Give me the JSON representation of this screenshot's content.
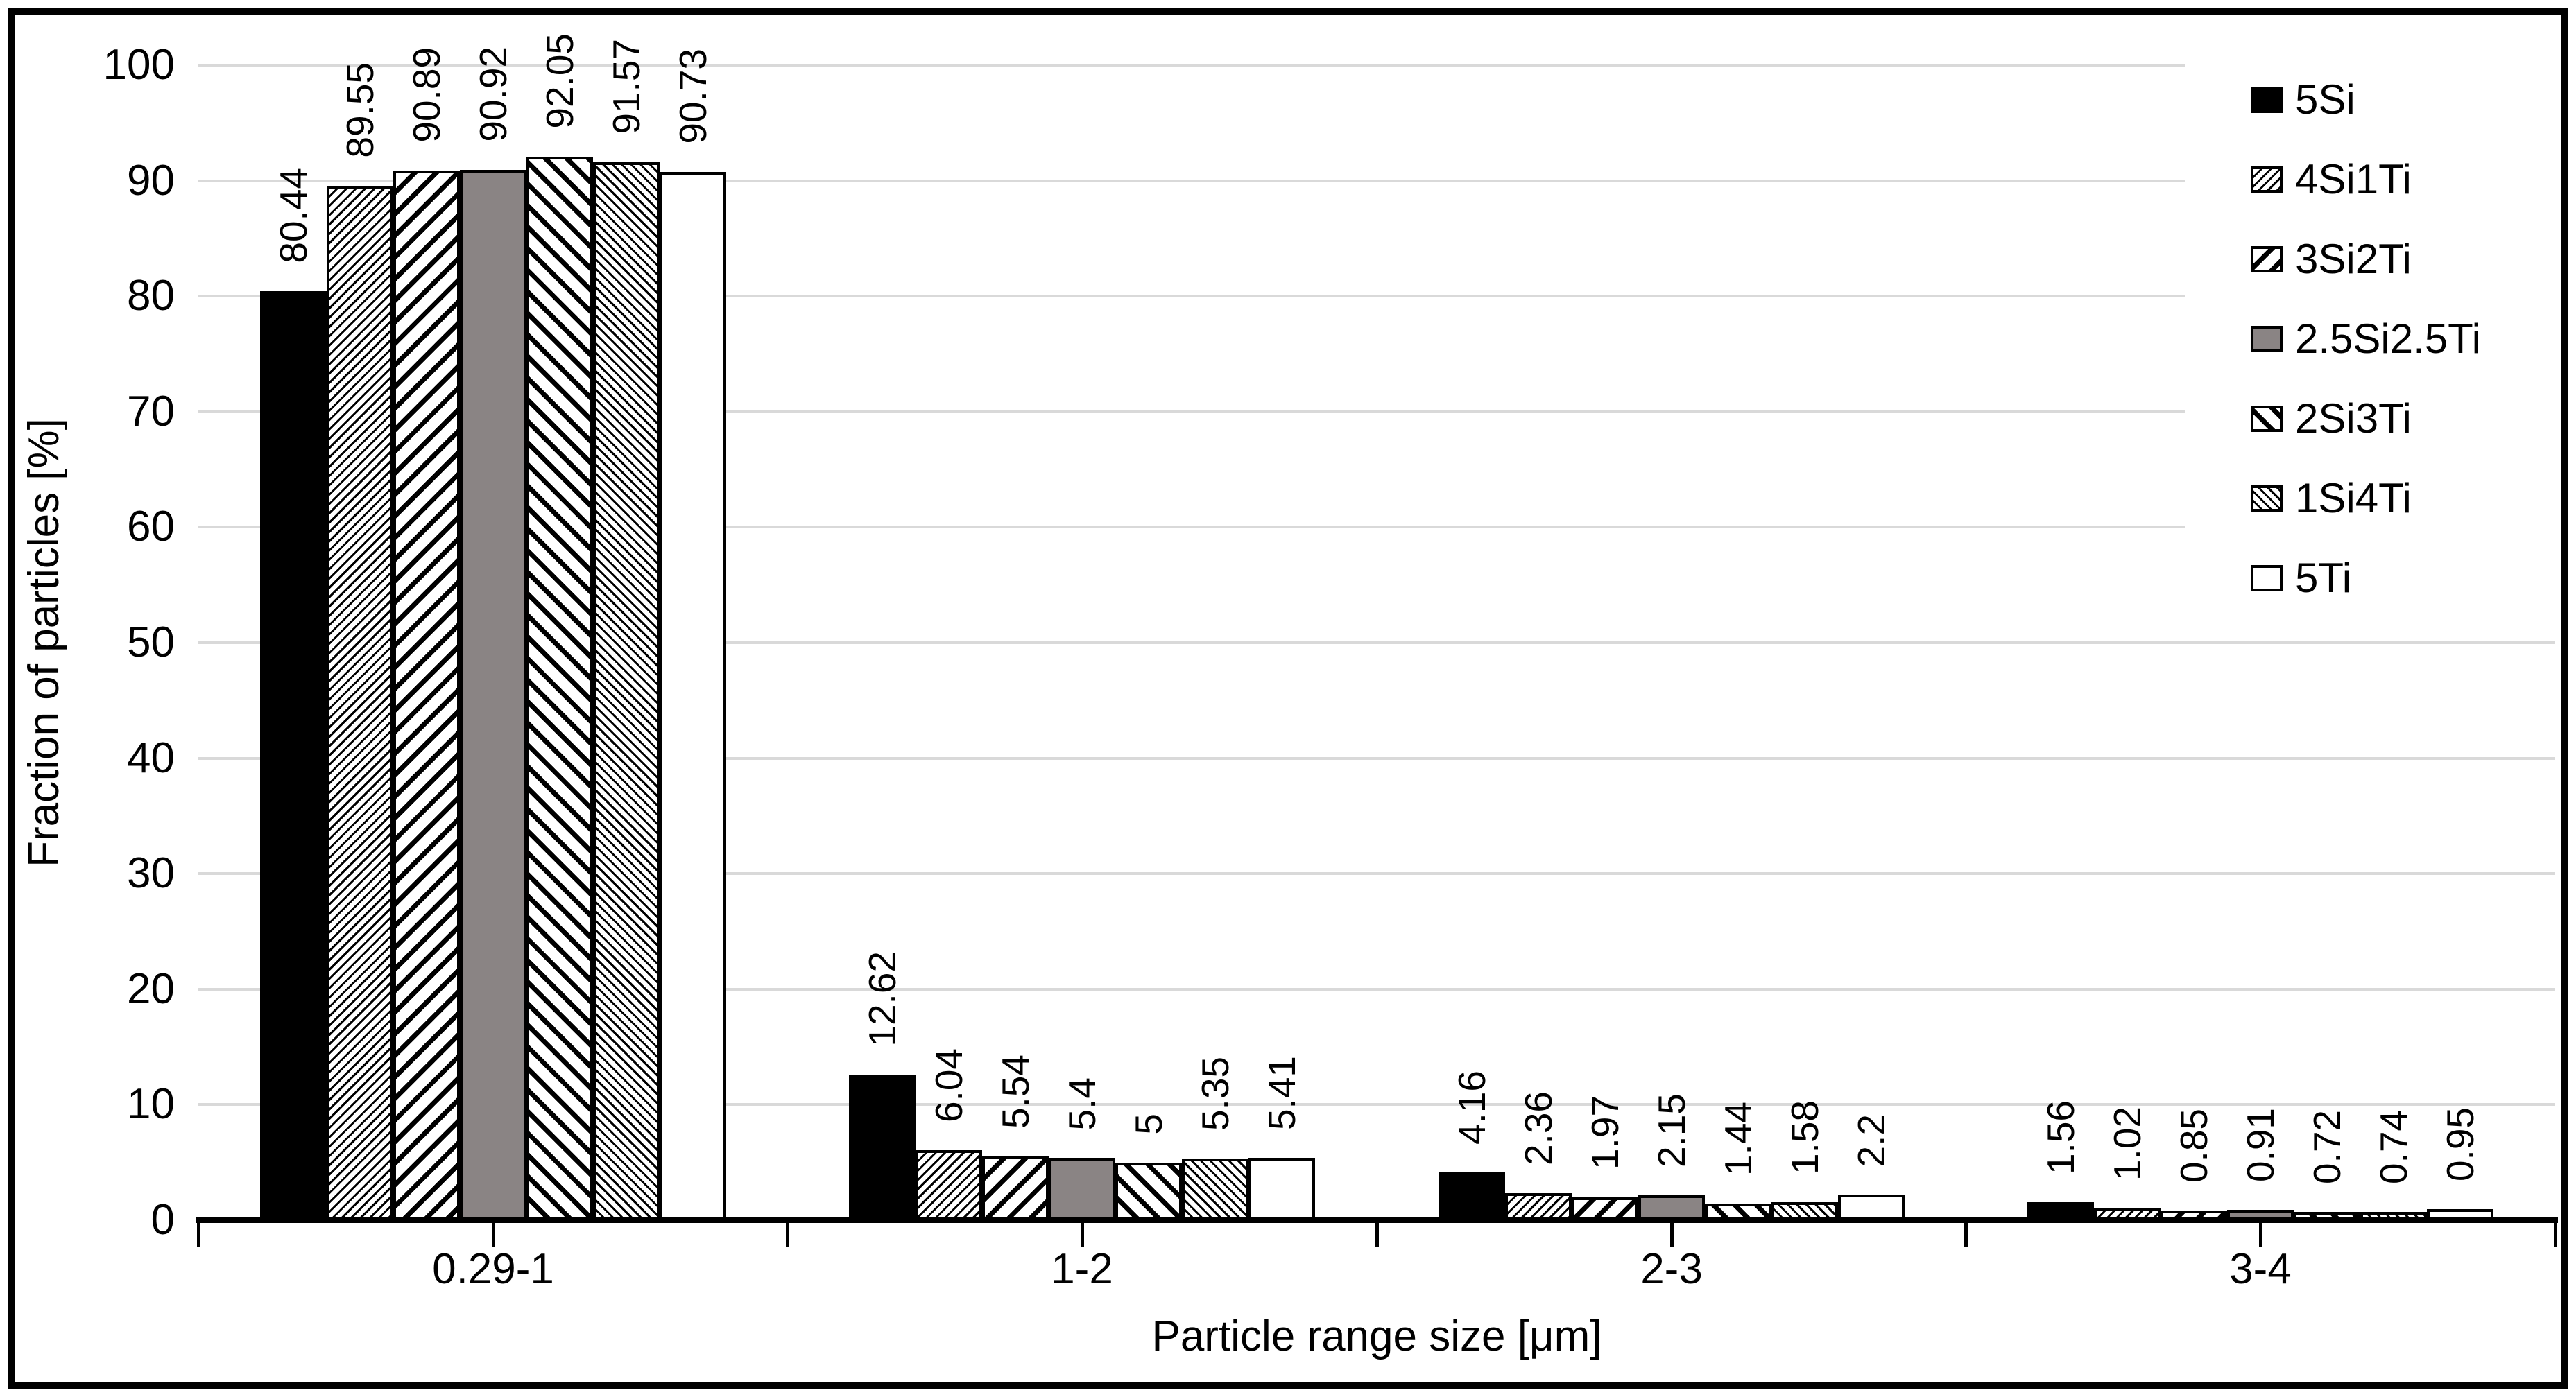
{
  "chart_data": {
    "type": "bar",
    "title": "",
    "xlabel": "Particle range size [μm]",
    "ylabel": "Fraction of particles [%]",
    "ylim": [
      0,
      100
    ],
    "yticks": [
      0,
      10,
      20,
      30,
      40,
      50,
      60,
      70,
      80,
      90,
      100
    ],
    "ytick_labels": [
      "0",
      "10",
      "20",
      "30",
      "40",
      "50",
      "60",
      "70",
      "80",
      "90",
      "100"
    ],
    "grid": "horizontal major gridlines, light gray, solid",
    "legend_position": "upper-right inside plot, white background",
    "categories": [
      "0.29-1",
      "1-2",
      "2-3",
      "3-4"
    ],
    "series": [
      {
        "name": "5Si",
        "pattern": "solid-black",
        "color": "#000000",
        "values": [
          80.44,
          12.62,
          4.16,
          1.56
        ],
        "labels": [
          "80.44",
          "12.62",
          "4.16",
          "1.56"
        ]
      },
      {
        "name": "4Si1Ti",
        "pattern": "fine-forward-hatch",
        "color": "#000000 on #ffffff",
        "values": [
          89.55,
          6.04,
          2.36,
          1.02
        ],
        "labels": [
          "89.55",
          "6.04",
          "2.36",
          "1.02"
        ]
      },
      {
        "name": "3Si2Ti",
        "pattern": "wide-forward-hatch",
        "color": "#000000 on #ffffff",
        "values": [
          90.89,
          5.54,
          1.97,
          0.85
        ],
        "labels": [
          "90.89",
          "5.54",
          "1.97",
          "0.85"
        ]
      },
      {
        "name": "2.5Si2.5Ti",
        "pattern": "solid-gray",
        "color": "#8a8484",
        "values": [
          90.92,
          5.4,
          2.15,
          0.91
        ],
        "labels": [
          "90.92",
          "5.4",
          "2.15",
          "0.91"
        ]
      },
      {
        "name": "2Si3Ti",
        "pattern": "wide-back-hatch",
        "color": "#000000 on #ffffff",
        "values": [
          92.05,
          5,
          1.44,
          0.72
        ],
        "labels": [
          "92.05",
          "5",
          "1.44",
          "0.72"
        ]
      },
      {
        "name": "1Si4Ti",
        "pattern": "fine-back-hatch",
        "color": "#000000 on #ffffff",
        "values": [
          91.57,
          5.35,
          1.58,
          0.74
        ],
        "labels": [
          "91.57",
          "5.35",
          "1.58",
          "0.74"
        ]
      },
      {
        "name": "5Ti",
        "pattern": "white",
        "color": "#ffffff",
        "values": [
          90.73,
          5.41,
          2.2,
          0.95
        ],
        "labels": [
          "90.73",
          "5.41",
          "2.2",
          "0.95"
        ]
      }
    ],
    "colors": {
      "gridline": "#d9d9d9",
      "axis": "#000000",
      "bar_outline": "#000000",
      "solid_gray": "#8a8484",
      "background": "#ffffff",
      "frame_border": "#000000"
    }
  }
}
